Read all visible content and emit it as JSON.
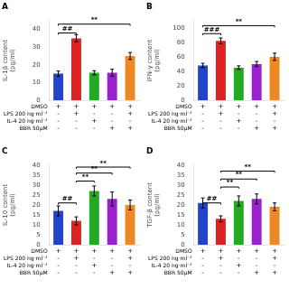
{
  "chart_data": [
    {
      "type": "bar",
      "title": "A",
      "ylabel": "IL-1β content\n(pg/ml)",
      "categories": [
        null,
        null,
        null,
        null,
        null
      ],
      "values": [
        15,
        35,
        15.5,
        15.5,
        25
      ],
      "errors": [
        1.5,
        2.0,
        1.2,
        2.0,
        2.0
      ],
      "colors": [
        "#2244CC",
        "#DD2222",
        "#22AA22",
        "#9922CC",
        "#EE8822"
      ],
      "ylim": [
        0,
        45
      ],
      "yticks": [
        0,
        10,
        20,
        30,
        40
      ],
      "grid": false,
      "tick_labels": "y",
      "annotations": [
        {
          "x1": 0,
          "x2": 1,
          "y": 38,
          "text": "##",
          "text_y": 38.5
        },
        {
          "x1": 0,
          "x2": 4,
          "y": 43,
          "text": "**",
          "text_y": 43.5
        }
      ],
      "treatments": [
        {
          "label": "DMSO",
          "marks": [
            "+",
            "+",
            "+",
            "+",
            "+"
          ]
        },
        {
          "label": "LPS 200 ng·ml⁻¹",
          "marks": [
            "-",
            "+",
            "-",
            "-",
            "+"
          ]
        },
        {
          "label": "IL-4 20 ng·ml⁻¹",
          "marks": [
            "-",
            "-",
            "+",
            "-",
            "-"
          ]
        },
        {
          "label": "BBR 50μM",
          "marks": [
            "-",
            "-",
            "-",
            "+",
            "+"
          ]
        }
      ]
    },
    {
      "type": "bar",
      "title": "B",
      "ylabel": "IFN-γ content\n(pg/ml)",
      "categories": [
        null,
        null,
        null,
        null,
        null
      ],
      "values": [
        48,
        82,
        45,
        50,
        60
      ],
      "errors": [
        3.0,
        4.0,
        2.5,
        3.5,
        5.0
      ],
      "colors": [
        "#2244CC",
        "#DD2222",
        "#22AA22",
        "#9922CC",
        "#EE8822"
      ],
      "ylim": [
        0,
        110
      ],
      "yticks": [
        0,
        20,
        40,
        60,
        80,
        100
      ],
      "grid": false,
      "tick_labels": "y",
      "annotations": [
        {
          "x1": 0,
          "x2": 1,
          "y": 92,
          "text": "###",
          "text_y": 93
        },
        {
          "x1": 0,
          "x2": 4,
          "y": 103,
          "text": "**",
          "text_y": 104
        }
      ],
      "treatments": [
        {
          "label": "DMSO",
          "marks": [
            "+",
            "+",
            "+",
            "+",
            "+"
          ]
        },
        {
          "label": "LPS 200 ng·ml⁻¹",
          "marks": [
            "-",
            "+",
            "-",
            "-",
            "+"
          ]
        },
        {
          "label": "IL-4 20 ng·ml⁻¹",
          "marks": [
            "-",
            "-",
            "+",
            "-",
            "-"
          ]
        },
        {
          "label": "BBR 50μM",
          "marks": [
            "-",
            "-",
            "-",
            "+",
            "+"
          ]
        }
      ]
    },
    {
      "type": "bar",
      "title": "C",
      "ylabel": "IL-10 content\n(pg/ml)",
      "categories": [
        null,
        null,
        null,
        null,
        null
      ],
      "values": [
        17,
        12,
        27,
        23,
        20
      ],
      "errors": [
        2.5,
        2.0,
        2.5,
        3.5,
        2.5
      ],
      "colors": [
        "#2244CC",
        "#DD2222",
        "#22AA22",
        "#9922CC",
        "#EE8822"
      ],
      "ylim": [
        0,
        40
      ],
      "yticks": [
        0,
        5,
        10,
        15,
        20,
        25,
        30,
        35,
        40
      ],
      "grid": false,
      "tick_labels": "y",
      "annotations": [
        {
          "x1": 0,
          "x2": 1,
          "y": 21,
          "text": "##",
          "text_y": 21.5
        },
        {
          "x1": 1,
          "x2": 2,
          "y": 32,
          "text": "**",
          "text_y": 32.5
        },
        {
          "x1": 1,
          "x2": 3,
          "y": 36,
          "text": "**",
          "text_y": 36.5
        },
        {
          "x1": 1,
          "x2": 4,
          "y": 39.0,
          "text": "**",
          "text_y": 39.2
        }
      ],
      "treatments": [
        {
          "label": "DMSO",
          "marks": [
            "+",
            "+",
            "+",
            "+",
            "+"
          ]
        },
        {
          "label": "LPS 200 ng·ml⁻¹",
          "marks": [
            "-",
            "+",
            "-",
            "-",
            "+"
          ]
        },
        {
          "label": "IL-4 20 ng·ml⁻¹",
          "marks": [
            "-",
            "-",
            "+",
            "-",
            "-"
          ]
        },
        {
          "label": "BBR 50μM",
          "marks": [
            "-",
            "-",
            "-",
            "+",
            "+"
          ]
        }
      ]
    },
    {
      "type": "bar",
      "title": "D",
      "ylabel": "TGF-β content\n(pg/ml)",
      "categories": [
        null,
        null,
        null,
        null,
        null
      ],
      "values": [
        21,
        13,
        22,
        23,
        19
      ],
      "errors": [
        2.5,
        1.5,
        2.5,
        2.5,
        2.0
      ],
      "colors": [
        "#2244CC",
        "#DD2222",
        "#22AA22",
        "#9922CC",
        "#EE8822"
      ],
      "ylim": [
        0,
        40
      ],
      "yticks": [
        0,
        5,
        10,
        15,
        20,
        25,
        30,
        35,
        40
      ],
      "grid": false,
      "tick_labels": "y",
      "annotations": [
        {
          "x1": 0,
          "x2": 1,
          "y": 21,
          "text": "##",
          "text_y": 21.5
        },
        {
          "x1": 1,
          "x2": 2,
          "y": 29,
          "text": "**",
          "text_y": 29.5
        },
        {
          "x1": 1,
          "x2": 3,
          "y": 33,
          "text": "**",
          "text_y": 33.5
        },
        {
          "x1": 1,
          "x2": 4,
          "y": 37,
          "text": "**",
          "text_y": 37.5
        }
      ],
      "treatments": [
        {
          "label": "DMSO",
          "marks": [
            "+",
            "+",
            "+",
            "+",
            "+"
          ]
        },
        {
          "label": "LPS 200 ng·ml⁻¹",
          "marks": [
            "-",
            "+",
            "-",
            "-",
            "+"
          ]
        },
        {
          "label": "IL-4 20 ng·ml⁻¹",
          "marks": [
            "-",
            "-",
            "+",
            "-",
            "-"
          ]
        },
        {
          "label": "BBR 50μM",
          "marks": [
            "-",
            "-",
            "-",
            "+",
            "+"
          ]
        }
      ]
    }
  ]
}
